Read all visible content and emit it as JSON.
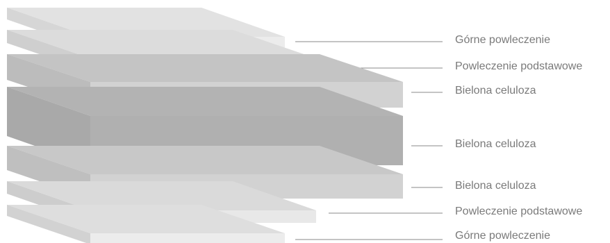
{
  "layers": [
    {
      "label": "Górne powleczenie",
      "color_top": "#e2e2e2",
      "color_front": "#ececec",
      "color_side": "#d6d6d6"
    },
    {
      "label": "Powleczenie podstawowe",
      "color_top": "#dcdcdc",
      "color_front": "#e8e8e8",
      "color_side": "#cfcfcf"
    },
    {
      "label": "Bielona celuloza",
      "color_top": "#c4c4c4",
      "color_front": "#d2d2d2",
      "color_side": "#bcbcbc"
    },
    {
      "label": "Bielona celuloza",
      "color_top": "#b3b3b3",
      "color_front": "#b0b0b0",
      "color_side": "#a9a9a9"
    },
    {
      "label": "Bielona celuloza",
      "color_top": "#c8c8c8",
      "color_front": "#d2d2d2",
      "color_side": "#bfbfbf"
    },
    {
      "label": "Powleczenie podstawowe",
      "color_top": "#dadada",
      "color_front": "#e8e8e8",
      "color_side": "#cdcdcd"
    },
    {
      "label": "Górne powleczenie",
      "color_top": "#dedede",
      "color_front": "#ececec",
      "color_side": "#d2d2d2"
    }
  ],
  "leader_color": "#8a8a8a"
}
